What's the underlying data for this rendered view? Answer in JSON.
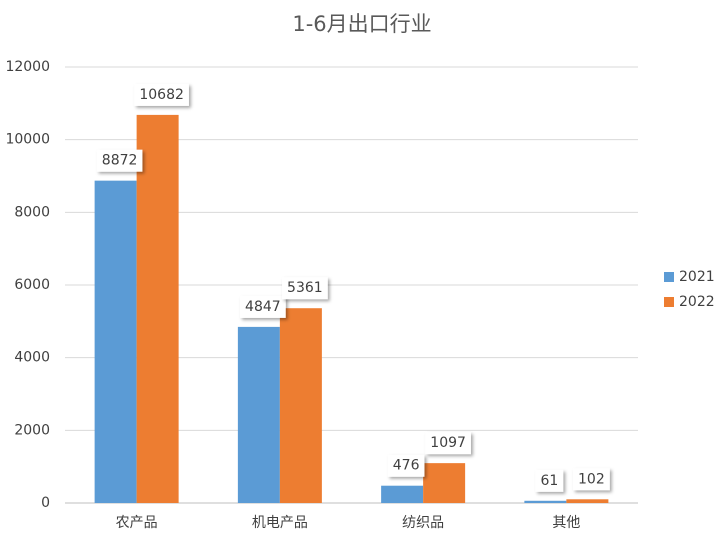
{
  "chart_data": {
    "type": "bar",
    "title": "1-6月出口行业",
    "categories": [
      "农产品",
      "机电产品",
      "纺织品",
      "其他"
    ],
    "series": [
      {
        "name": "2021",
        "color": "#5b9bd5",
        "values": [
          8872,
          4847,
          476,
          61
        ]
      },
      {
        "name": "2022",
        "color": "#ed7d31",
        "values": [
          10682,
          5361,
          1097,
          102
        ]
      }
    ],
    "ylim": [
      0,
      12000
    ],
    "yticks": [
      0,
      2000,
      4000,
      6000,
      8000,
      10000,
      12000
    ],
    "grid": true,
    "legend": "right"
  }
}
